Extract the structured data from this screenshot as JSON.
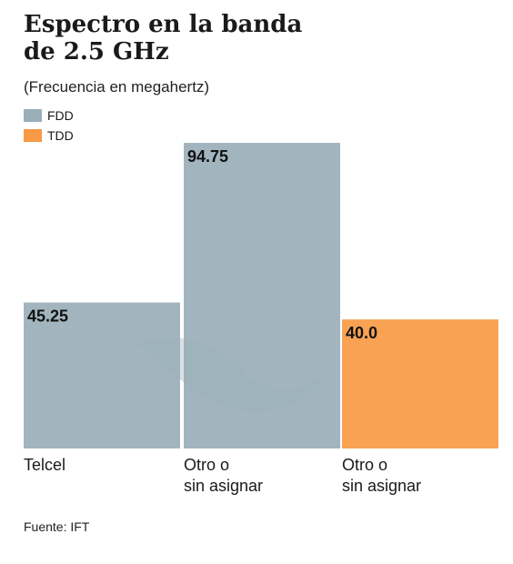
{
  "title_line1": "Espectro en la banda",
  "title_line2": "de 2.5 GHz",
  "subtitle": "(Frecuencia en megahertz)",
  "legend": [
    {
      "label": "FDD",
      "color": "#9aafba"
    },
    {
      "label": "TDD",
      "color": "#f89a45"
    }
  ],
  "source": "Fuente: IFT",
  "chart_data": {
    "type": "bar",
    "categories": [
      "Telcel",
      "Otro o\nsin asignar",
      "Otro o\nsin asignar"
    ],
    "series": [
      {
        "name": "FDD",
        "color": "#9aafba",
        "values": [
          45.25,
          94.75,
          null
        ]
      },
      {
        "name": "TDD",
        "color": "#f89a45",
        "values": [
          null,
          null,
          40.0
        ]
      }
    ],
    "data_labels": [
      "45.25",
      "94.75",
      "40.0"
    ],
    "ylim": [
      0,
      94.75
    ],
    "grid": false,
    "legend_position": "top-left"
  }
}
